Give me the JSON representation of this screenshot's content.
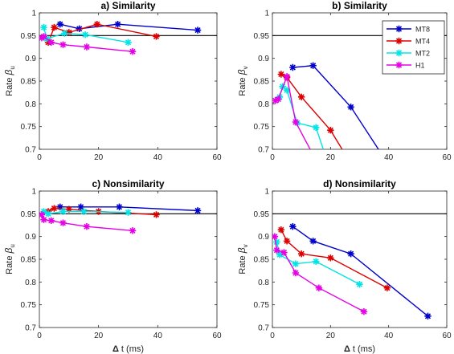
{
  "figure": {
    "series_styles": [
      {
        "name": "MT8",
        "color": "#0000cc"
      },
      {
        "name": "MT4",
        "color": "#dd0000"
      },
      {
        "name": "MT2",
        "color": "#00e5e5"
      },
      {
        "name": "H1",
        "color": "#e600e6"
      }
    ],
    "marker": "asterisk",
    "reference_line_color": "#000000"
  },
  "chart_data": [
    {
      "type": "line",
      "title": "a) Similarity",
      "ylabel_main": "Rate ",
      "ylabel_symbol": "β",
      "ylabel_sub": "u",
      "xlabel_main": "",
      "xlabel_delta": "",
      "xlim": [
        0,
        60
      ],
      "ylim": [
        0.7,
        1
      ],
      "xticks": [
        "0",
        "20",
        "40",
        "60"
      ],
      "yticks": [
        "0.7",
        "0.75",
        "0.8",
        "0.85",
        "0.9",
        "0.95",
        "1"
      ],
      "reference_line": 0.95,
      "legend": null,
      "series": [
        {
          "name": "MT8",
          "x": [
            7,
            13.5,
            26.5,
            53.5
          ],
          "y": [
            0.975,
            0.965,
            0.975,
            0.962
          ]
        },
        {
          "name": "MT4",
          "x": [
            3,
            5,
            10,
            19.5,
            39.5
          ],
          "y": [
            0.935,
            0.968,
            0.957,
            0.975,
            0.948
          ]
        },
        {
          "name": "MT2",
          "x": [
            1.5,
            2.5,
            8.5,
            15.5,
            30
          ],
          "y": [
            0.968,
            0.943,
            0.955,
            0.952,
            0.935
          ]
        },
        {
          "name": "H1",
          "x": [
            0.8,
            1.5,
            4,
            8,
            16,
            31.5
          ],
          "y": [
            0.945,
            0.948,
            0.935,
            0.93,
            0.925,
            0.915
          ]
        }
      ]
    },
    {
      "type": "line",
      "title": "b) Similarity",
      "ylabel_main": "Rate ",
      "ylabel_symbol": "β",
      "ylabel_sub": "v",
      "xlabel_main": "",
      "xlabel_delta": "",
      "xlim": [
        0,
        60
      ],
      "ylim": [
        0.7,
        1
      ],
      "xticks": [
        "0",
        "20",
        "40",
        "60"
      ],
      "yticks": [
        "0.7",
        "0.75",
        "0.8",
        "0.85",
        "0.9",
        "0.95",
        "1"
      ],
      "reference_line": 0.95,
      "legend": {
        "position": "top-right",
        "entries": [
          "MT8",
          "MT4",
          "MT2",
          "H1"
        ]
      },
      "series": [
        {
          "name": "MT8",
          "x": [
            7,
            14,
            27,
            36.5
          ],
          "y": [
            0.88,
            0.884,
            0.793,
            0.7
          ]
        },
        {
          "name": "MT4",
          "x": [
            3,
            5,
            10,
            20,
            24
          ],
          "y": [
            0.865,
            0.858,
            0.815,
            0.742,
            0.7
          ]
        },
        {
          "name": "MT2",
          "x": [
            2.5,
            3.5,
            5,
            8.5,
            15,
            17.5
          ],
          "y": [
            0.815,
            0.838,
            0.83,
            0.758,
            0.748,
            0.7
          ]
        },
        {
          "name": "H1",
          "x": [
            1,
            2,
            5,
            8,
            13
          ],
          "y": [
            0.807,
            0.81,
            0.86,
            0.76,
            0.7
          ]
        }
      ]
    },
    {
      "type": "line",
      "title": "c) Nonsimilarity",
      "ylabel_main": "Rate ",
      "ylabel_symbol": "β",
      "ylabel_sub": "u",
      "xlabel_main": " t (ms)",
      "xlabel_delta": "Δ",
      "xlim": [
        0,
        60
      ],
      "ylim": [
        0.7,
        1
      ],
      "xticks": [
        "0",
        "20",
        "40",
        "60"
      ],
      "yticks": [
        "0.7",
        "0.75",
        "0.8",
        "0.85",
        "0.9",
        "0.95",
        "1"
      ],
      "reference_line": 0.95,
      "legend": null,
      "series": [
        {
          "name": "MT8",
          "x": [
            7,
            14,
            27,
            53.5
          ],
          "y": [
            0.965,
            0.965,
            0.965,
            0.957
          ]
        },
        {
          "name": "MT4",
          "x": [
            3,
            5,
            10,
            20,
            39.5
          ],
          "y": [
            0.955,
            0.962,
            0.96,
            0.955,
            0.948
          ]
        },
        {
          "name": "MT2",
          "x": [
            1.5,
            3,
            8,
            15,
            30
          ],
          "y": [
            0.955,
            0.95,
            0.955,
            0.955,
            0.953
          ]
        },
        {
          "name": "H1",
          "x": [
            0.8,
            1.5,
            4,
            8,
            16,
            31.5
          ],
          "y": [
            0.948,
            0.937,
            0.935,
            0.93,
            0.922,
            0.913
          ]
        }
      ]
    },
    {
      "type": "line",
      "title": "d) Nonsimilarity",
      "ylabel_main": "Rate ",
      "ylabel_symbol": "β",
      "ylabel_sub": "v",
      "xlabel_main": " t (ms)",
      "xlabel_delta": "Δ",
      "xlim": [
        0,
        60
      ],
      "ylim": [
        0.7,
        1
      ],
      "xticks": [
        "0",
        "20",
        "40",
        "60"
      ],
      "yticks": [
        "0.7",
        "0.75",
        "0.8",
        "0.85",
        "0.9",
        "0.95",
        "1"
      ],
      "reference_line": 0.95,
      "legend": null,
      "series": [
        {
          "name": "MT8",
          "x": [
            7,
            14,
            27,
            53.5
          ],
          "y": [
            0.922,
            0.89,
            0.862,
            0.725
          ]
        },
        {
          "name": "MT4",
          "x": [
            3,
            5,
            10,
            20,
            39.5
          ],
          "y": [
            0.915,
            0.89,
            0.862,
            0.853,
            0.787
          ]
        },
        {
          "name": "MT2",
          "x": [
            1.5,
            2.5,
            8,
            15,
            30
          ],
          "y": [
            0.888,
            0.86,
            0.84,
            0.845,
            0.795
          ]
        },
        {
          "name": "H1",
          "x": [
            0.8,
            1.5,
            4,
            8,
            16,
            31.5
          ],
          "y": [
            0.9,
            0.87,
            0.865,
            0.82,
            0.787,
            0.735
          ]
        }
      ]
    }
  ]
}
